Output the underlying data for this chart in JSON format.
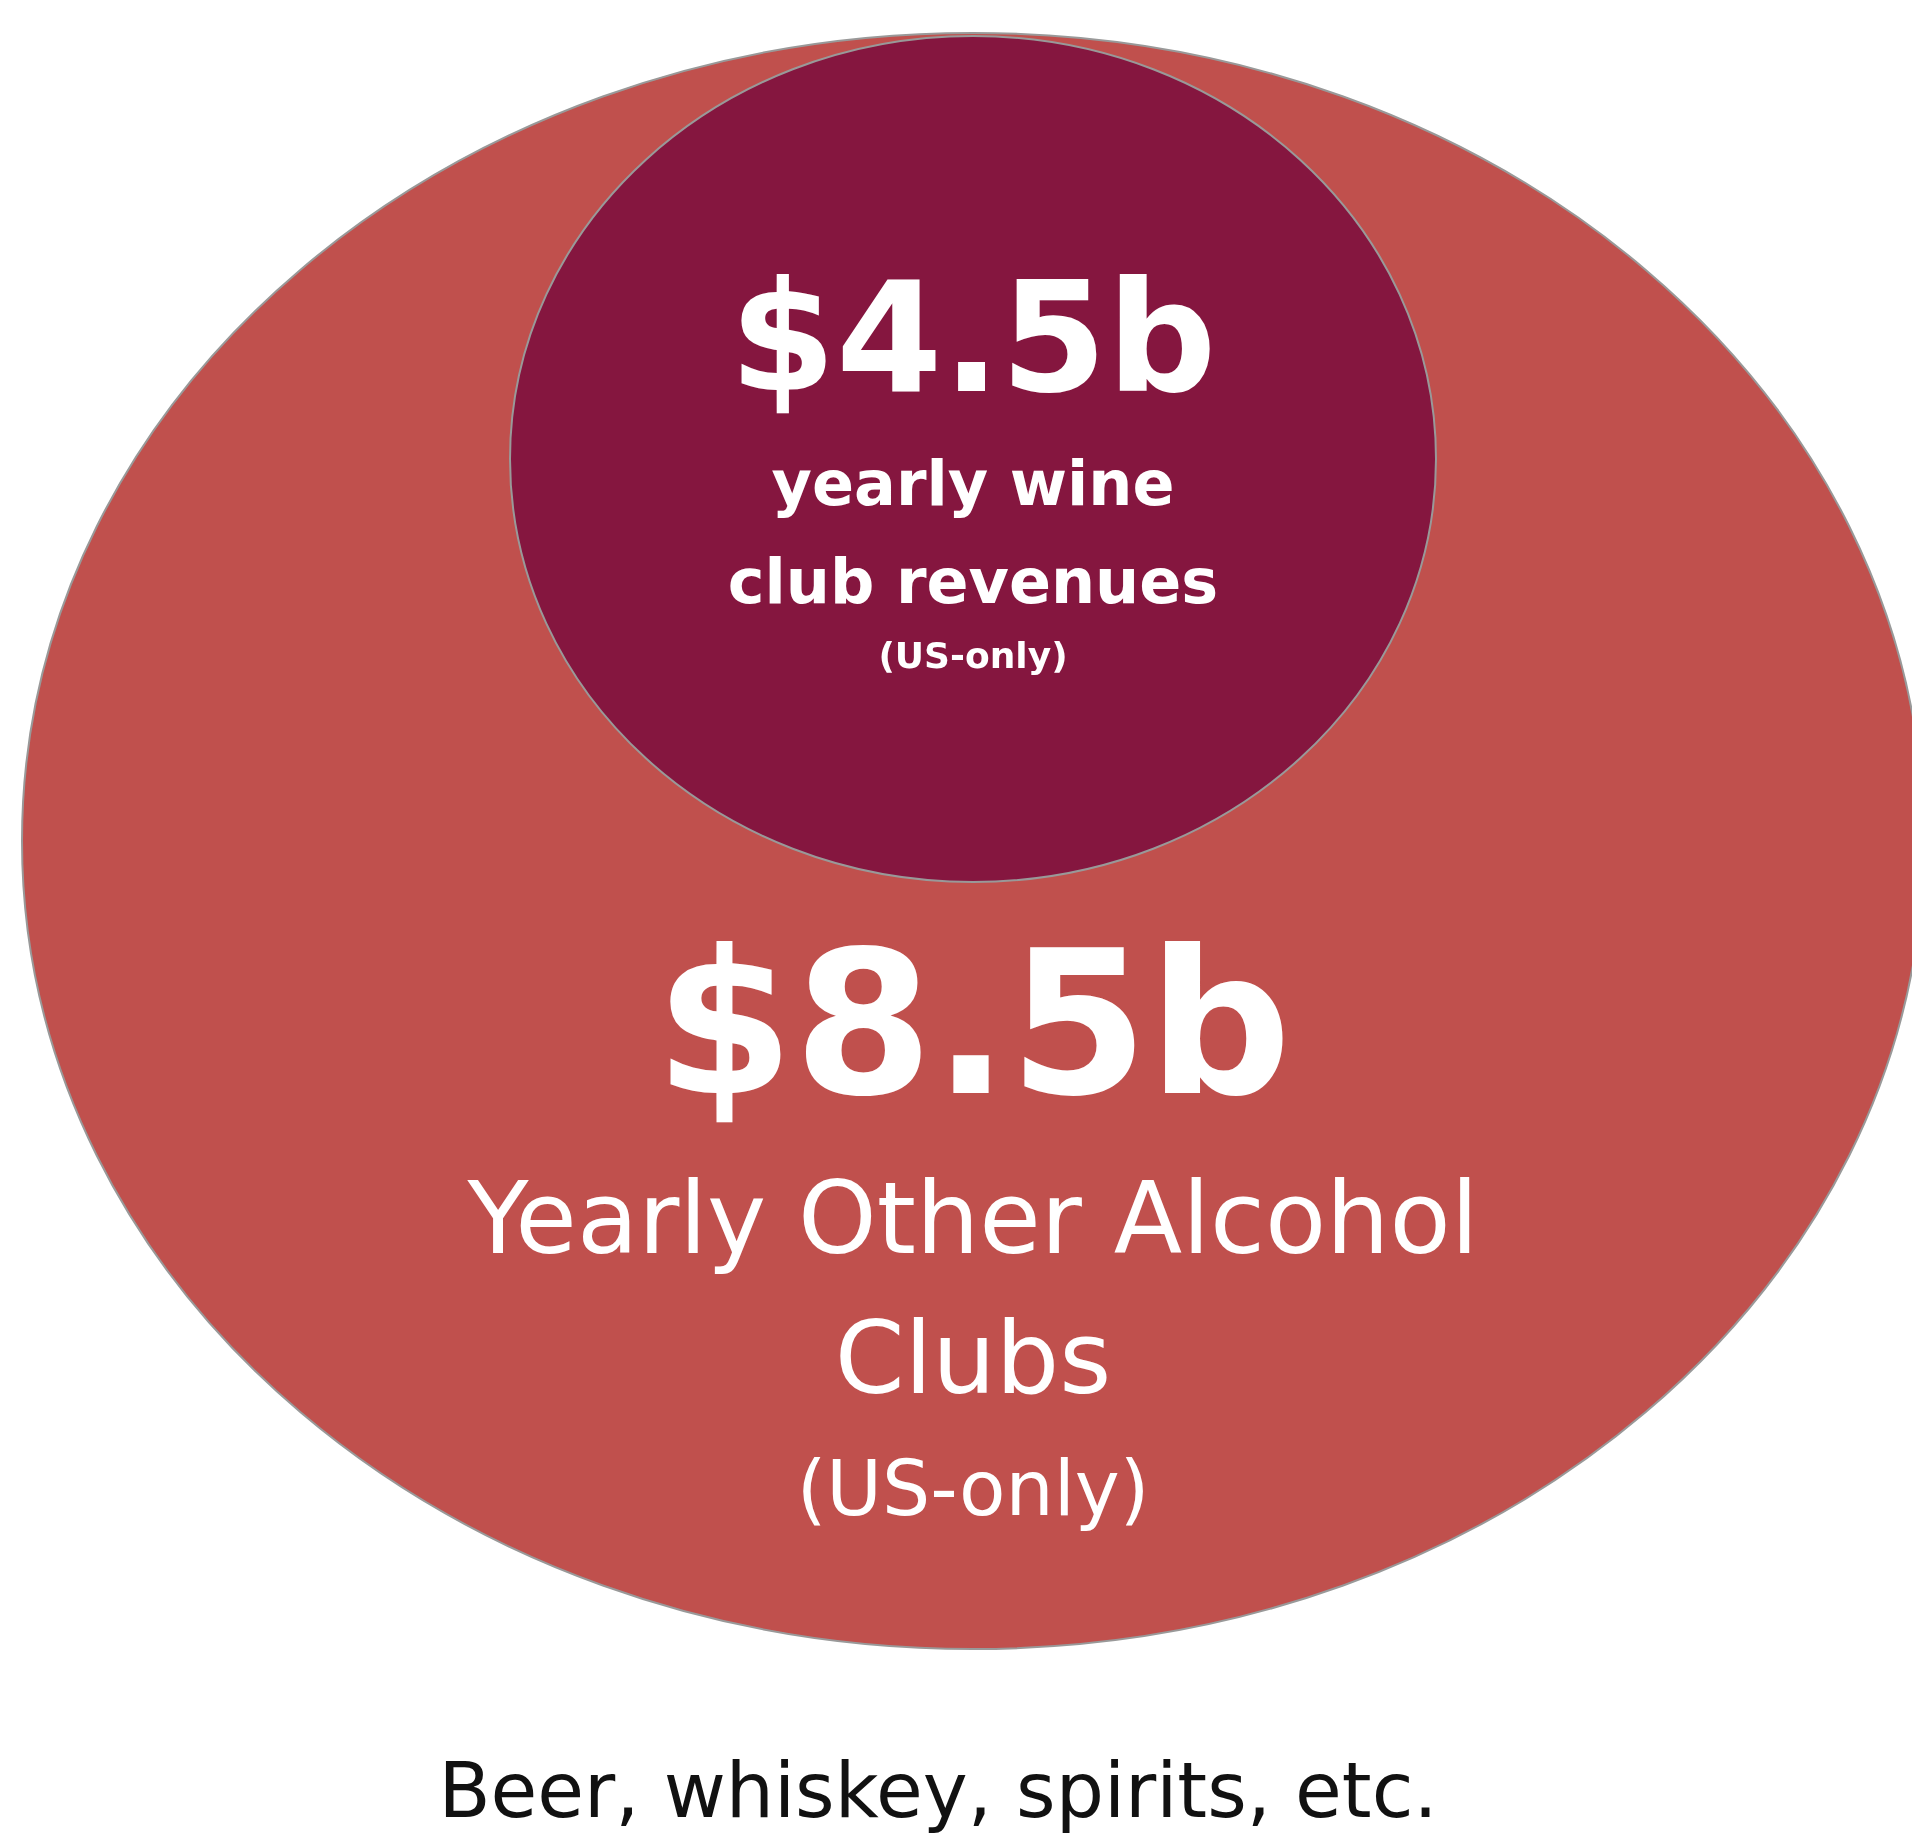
{
  "chart_data": {
    "type": "other",
    "categories": [
      "yearly wine\nclub revenues\n(US-only)",
      "Yearly Other Alcohol\nClubs\n(US-only)"
    ],
    "values": [
      4.5,
      8.5
    ],
    "value_labels": [
      "$4.5b",
      "$8.5b"
    ],
    "colors": [
      "#85163f",
      "#c0504d"
    ],
    "annotations": [
      "Beer, whiskey, spirits, etc."
    ]
  }
}
